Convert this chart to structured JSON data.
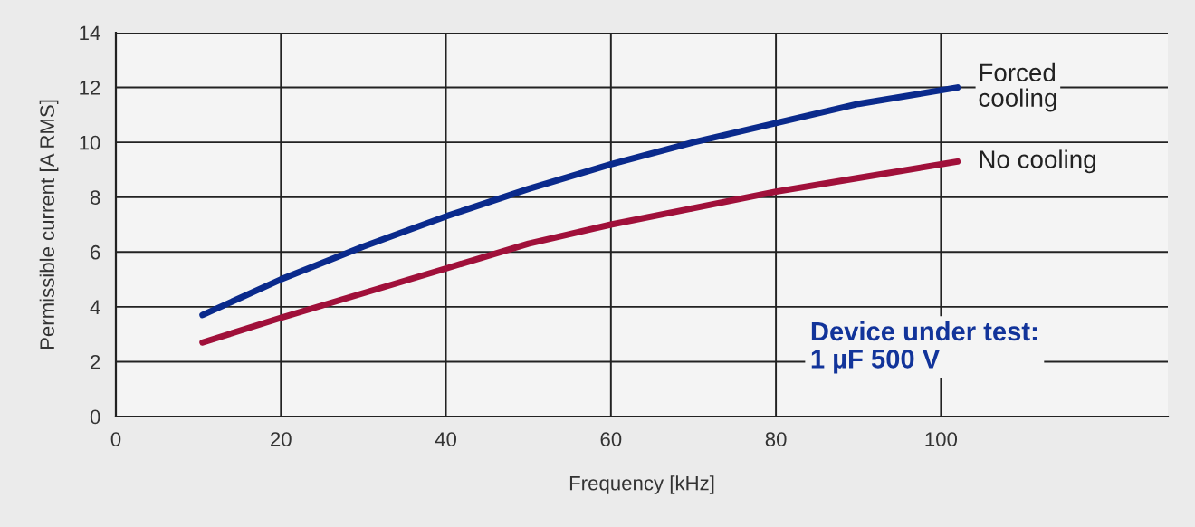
{
  "chart_data": {
    "type": "line",
    "xlabel": "Frequency [kHz]",
    "ylabel": "Permissible current [A RMS]",
    "xlim": [
      0,
      127.5
    ],
    "ylim": [
      0,
      14
    ],
    "xticks": [
      0,
      20,
      40,
      60,
      80,
      100
    ],
    "yticks": [
      0,
      2,
      4,
      6,
      8,
      10,
      12,
      14
    ],
    "grid": true,
    "series": [
      {
        "name": "Forced\ncooling",
        "color": "#0a2a8c",
        "x": [
          10.5,
          20,
          30,
          40,
          50,
          60,
          70,
          80,
          90,
          102
        ],
        "values": [
          3.7,
          5.0,
          6.2,
          7.3,
          8.3,
          9.2,
          10.0,
          10.7,
          11.4,
          12.0
        ]
      },
      {
        "name": "No cooling",
        "color": "#a0103a",
        "x": [
          10.5,
          20,
          30,
          40,
          50,
          60,
          70,
          80,
          90,
          102
        ],
        "values": [
          2.7,
          3.6,
          4.5,
          5.4,
          6.3,
          7.0,
          7.6,
          8.2,
          8.7,
          9.3
        ]
      }
    ],
    "annotations": [
      "Device under test:\n1 µF 500 V"
    ]
  }
}
